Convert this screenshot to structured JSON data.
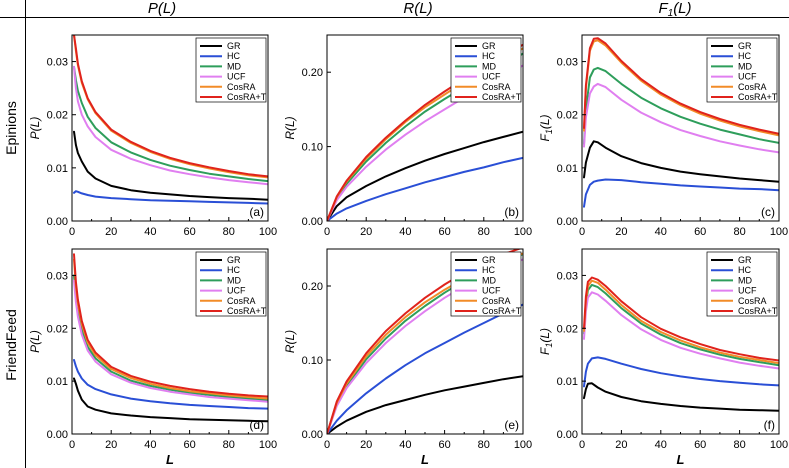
{
  "header": {
    "columns": [
      {
        "pre": "P(L)",
        "sub": "",
        "post": ""
      },
      {
        "pre": "R(L)",
        "sub": "",
        "post": ""
      },
      {
        "pre": "F",
        "sub": "1",
        "post": "(L)"
      }
    ],
    "rows": [
      "Epinions",
      "FriendFeed"
    ]
  },
  "chart_data": [
    {
      "type": "line",
      "panel_label": "(a)",
      "dataset": "Epinions",
      "metric": "precision",
      "xlabel": "",
      "ylabel": "P(L)",
      "xlim": [
        0,
        100
      ],
      "ylim": [
        0,
        0.035
      ],
      "xticks": [
        "0",
        "20",
        "40",
        "60",
        "80",
        "100"
      ],
      "yticks": [
        "0.00",
        "0.01",
        "0.02",
        "0.03"
      ],
      "x": [
        1,
        2,
        3,
        5,
        8,
        12,
        20,
        30,
        40,
        50,
        60,
        70,
        80,
        90,
        100
      ],
      "series": [
        {
          "name": "GR",
          "color": "#000000",
          "values": [
            0.0168,
            0.0143,
            0.0128,
            0.0112,
            0.0093,
            0.008,
            0.0066,
            0.0058,
            0.0053,
            0.005,
            0.0047,
            0.0045,
            0.0043,
            0.0042,
            0.004
          ]
        },
        {
          "name": "HC",
          "color": "#2a4fd6",
          "values": [
            0.0053,
            0.0056,
            0.0055,
            0.0052,
            0.0049,
            0.0046,
            0.0043,
            0.0041,
            0.0039,
            0.0038,
            0.0037,
            0.0036,
            0.0035,
            0.0034,
            0.0033
          ]
        },
        {
          "name": "MD",
          "color": "#2e9e5b",
          "values": [
            0.029,
            0.0265,
            0.0245,
            0.0222,
            0.0196,
            0.0175,
            0.0148,
            0.0129,
            0.0115,
            0.0104,
            0.0096,
            0.0089,
            0.0084,
            0.0079,
            0.0075
          ]
        },
        {
          "name": "UCF",
          "color": "#e07ff0",
          "values": [
            0.029,
            0.025,
            0.0225,
            0.02,
            0.0178,
            0.0158,
            0.0134,
            0.0117,
            0.0105,
            0.0095,
            0.0088,
            0.0082,
            0.0077,
            0.0073,
            0.0069
          ]
        },
        {
          "name": "CosRA",
          "color": "#f28c28",
          "values": [
            0.035,
            0.032,
            0.0293,
            0.026,
            0.0229,
            0.0203,
            0.017,
            0.0147,
            0.013,
            0.0117,
            0.0107,
            0.0099,
            0.0092,
            0.0086,
            0.0082
          ]
        },
        {
          "name": "CosRA+T",
          "color": "#e0231c",
          "values": [
            0.035,
            0.0325,
            0.0296,
            0.0263,
            0.0231,
            0.0205,
            0.0172,
            0.0149,
            0.0132,
            0.0119,
            0.0109,
            0.0101,
            0.0094,
            0.0088,
            0.0084
          ]
        }
      ]
    },
    {
      "type": "line",
      "panel_label": "(b)",
      "dataset": "Epinions",
      "metric": "recall",
      "xlabel": "",
      "ylabel": "R(L)",
      "xlim": [
        0,
        100
      ],
      "ylim": [
        0,
        0.25
      ],
      "xticks": [
        "0",
        "20",
        "40",
        "60",
        "80",
        "100"
      ],
      "yticks": [
        "0.00",
        "0.10",
        "0.20"
      ],
      "x": [
        0,
        5,
        10,
        20,
        30,
        40,
        50,
        60,
        70,
        80,
        90,
        100
      ],
      "series": [
        {
          "name": "GR",
          "color": "#000000",
          "values": [
            0,
            0.02,
            0.032,
            0.047,
            0.06,
            0.071,
            0.081,
            0.09,
            0.098,
            0.106,
            0.113,
            0.12
          ]
        },
        {
          "name": "HC",
          "color": "#2a4fd6",
          "values": [
            0,
            0.01,
            0.017,
            0.027,
            0.036,
            0.044,
            0.052,
            0.059,
            0.066,
            0.072,
            0.079,
            0.085
          ]
        },
        {
          "name": "MD",
          "color": "#2e9e5b",
          "values": [
            0,
            0.03,
            0.05,
            0.08,
            0.105,
            0.127,
            0.147,
            0.164,
            0.18,
            0.196,
            0.21,
            0.225
          ]
        },
        {
          "name": "UCF",
          "color": "#e07ff0",
          "values": [
            0,
            0.028,
            0.046,
            0.073,
            0.096,
            0.116,
            0.134,
            0.15,
            0.166,
            0.181,
            0.195,
            0.209
          ]
        },
        {
          "name": "CosRA",
          "color": "#f28c28",
          "values": [
            0,
            0.032,
            0.053,
            0.084,
            0.11,
            0.133,
            0.153,
            0.17,
            0.187,
            0.203,
            0.218,
            0.232
          ]
        },
        {
          "name": "CosRA+T",
          "color": "#e0231c",
          "values": [
            0,
            0.033,
            0.054,
            0.086,
            0.112,
            0.135,
            0.156,
            0.174,
            0.191,
            0.207,
            0.222,
            0.237
          ]
        }
      ]
    },
    {
      "type": "line",
      "panel_label": "(c)",
      "dataset": "Epinions",
      "metric": "F1",
      "xlabel": "",
      "ylabel": "F1(L)",
      "xlim": [
        0,
        100
      ],
      "ylim": [
        0,
        0.035
      ],
      "xticks": [
        "0",
        "20",
        "40",
        "60",
        "80",
        "100"
      ],
      "yticks": [
        "0.00",
        "0.01",
        "0.02",
        "0.03"
      ],
      "x": [
        1,
        2,
        4,
        6,
        8,
        12,
        20,
        30,
        40,
        50,
        60,
        70,
        80,
        90,
        100
      ],
      "series": [
        {
          "name": "GR",
          "color": "#000000",
          "values": [
            0.0082,
            0.011,
            0.0138,
            0.015,
            0.0148,
            0.0138,
            0.0122,
            0.0109,
            0.01,
            0.0093,
            0.0088,
            0.0084,
            0.008,
            0.0077,
            0.0074
          ]
        },
        {
          "name": "HC",
          "color": "#2a4fd6",
          "values": [
            0.0027,
            0.005,
            0.0068,
            0.0074,
            0.0076,
            0.0078,
            0.0077,
            0.0073,
            0.007,
            0.0067,
            0.0065,
            0.0063,
            0.0061,
            0.006,
            0.0058
          ]
        },
        {
          "name": "MD",
          "color": "#2e9e5b",
          "values": [
            0.0145,
            0.021,
            0.027,
            0.0285,
            0.0288,
            0.0282,
            0.0258,
            0.0232,
            0.0212,
            0.0196,
            0.0183,
            0.0172,
            0.0163,
            0.0154,
            0.0147
          ]
        },
        {
          "name": "UCF",
          "color": "#e07ff0",
          "values": [
            0.014,
            0.0195,
            0.024,
            0.0253,
            0.0258,
            0.0252,
            0.0228,
            0.0204,
            0.0186,
            0.0171,
            0.016,
            0.015,
            0.0142,
            0.0135,
            0.0129
          ]
        },
        {
          "name": "CosRA",
          "color": "#f28c28",
          "values": [
            0.017,
            0.025,
            0.032,
            0.0338,
            0.034,
            0.033,
            0.0298,
            0.0264,
            0.0238,
            0.0218,
            0.0202,
            0.0189,
            0.0178,
            0.0169,
            0.0161
          ]
        },
        {
          "name": "CosRA+T",
          "color": "#e0231c",
          "values": [
            0.0175,
            0.0255,
            0.0325,
            0.0343,
            0.0344,
            0.0334,
            0.0301,
            0.0267,
            0.0241,
            0.0221,
            0.0205,
            0.0192,
            0.0181,
            0.0172,
            0.0164
          ]
        }
      ]
    },
    {
      "type": "line",
      "panel_label": "(d)",
      "dataset": "FriendFeed",
      "metric": "precision",
      "xlabel": "L",
      "ylabel": "P(L)",
      "xlim": [
        0,
        100
      ],
      "ylim": [
        0,
        0.035
      ],
      "xticks": [
        "0",
        "20",
        "40",
        "60",
        "80",
        "100"
      ],
      "yticks": [
        "0.00",
        "0.01",
        "0.02",
        "0.03"
      ],
      "x": [
        1,
        2,
        3,
        5,
        8,
        12,
        20,
        30,
        40,
        50,
        60,
        70,
        80,
        90,
        100
      ],
      "series": [
        {
          "name": "GR",
          "color": "#000000",
          "values": [
            0.0105,
            0.0095,
            0.0082,
            0.0065,
            0.0052,
            0.0046,
            0.0039,
            0.0035,
            0.0032,
            0.003,
            0.0028,
            0.0027,
            0.0026,
            0.0025,
            0.0024
          ]
        },
        {
          "name": "HC",
          "color": "#2a4fd6",
          "values": [
            0.014,
            0.0128,
            0.0118,
            0.0105,
            0.0093,
            0.0085,
            0.0075,
            0.0067,
            0.0062,
            0.0058,
            0.0055,
            0.0053,
            0.0051,
            0.0049,
            0.0048
          ]
        },
        {
          "name": "MD",
          "color": "#2e9e5b",
          "values": [
            0.03,
            0.026,
            0.0232,
            0.0197,
            0.0165,
            0.0143,
            0.0118,
            0.0101,
            0.0091,
            0.0084,
            0.0078,
            0.0074,
            0.007,
            0.0067,
            0.0064
          ]
        },
        {
          "name": "UCF",
          "color": "#e07ff0",
          "values": [
            0.029,
            0.025,
            0.0222,
            0.0188,
            0.0158,
            0.0137,
            0.0113,
            0.0097,
            0.0087,
            0.008,
            0.0075,
            0.007,
            0.0067,
            0.0064,
            0.0061
          ]
        },
        {
          "name": "CosRA",
          "color": "#f28c28",
          "values": [
            0.033,
            0.028,
            0.0247,
            0.0208,
            0.0173,
            0.0149,
            0.0123,
            0.0106,
            0.0095,
            0.0087,
            0.0081,
            0.0077,
            0.0073,
            0.007,
            0.0067
          ]
        },
        {
          "name": "CosRA+T",
          "color": "#e0231c",
          "values": [
            0.034,
            0.0288,
            0.0254,
            0.0214,
            0.0178,
            0.0154,
            0.0127,
            0.011,
            0.0099,
            0.0091,
            0.0085,
            0.008,
            0.0076,
            0.0073,
            0.0071
          ]
        }
      ]
    },
    {
      "type": "line",
      "panel_label": "(e)",
      "dataset": "FriendFeed",
      "metric": "recall",
      "xlabel": "L",
      "ylabel": "R(L)",
      "xlim": [
        0,
        100
      ],
      "ylim": [
        0,
        0.25
      ],
      "xticks": [
        "0",
        "20",
        "40",
        "60",
        "80",
        "100"
      ],
      "yticks": [
        "0.00",
        "0.10",
        "0.20"
      ],
      "x": [
        0,
        5,
        10,
        20,
        30,
        40,
        50,
        60,
        70,
        80,
        90,
        100
      ],
      "series": [
        {
          "name": "GR",
          "color": "#000000",
          "values": [
            0,
            0.01,
            0.018,
            0.03,
            0.039,
            0.046,
            0.053,
            0.059,
            0.064,
            0.069,
            0.074,
            0.078
          ]
        },
        {
          "name": "HC",
          "color": "#2a4fd6",
          "values": [
            0,
            0.018,
            0.032,
            0.055,
            0.075,
            0.093,
            0.109,
            0.123,
            0.137,
            0.15,
            0.163,
            0.175
          ]
        },
        {
          "name": "MD",
          "color": "#2e9e5b",
          "values": [
            0,
            0.04,
            0.065,
            0.101,
            0.129,
            0.153,
            0.173,
            0.191,
            0.207,
            0.221,
            0.233,
            0.243
          ]
        },
        {
          "name": "UCF",
          "color": "#e07ff0",
          "values": [
            0,
            0.038,
            0.062,
            0.096,
            0.123,
            0.146,
            0.166,
            0.184,
            0.2,
            0.214,
            0.226,
            0.236
          ]
        },
        {
          "name": "CosRA",
          "color": "#f28c28",
          "values": [
            0,
            0.042,
            0.068,
            0.105,
            0.134,
            0.158,
            0.178,
            0.195,
            0.21,
            0.223,
            0.234,
            0.244
          ]
        },
        {
          "name": "CosRA+T",
          "color": "#e0231c",
          "values": [
            0,
            0.044,
            0.071,
            0.109,
            0.139,
            0.163,
            0.184,
            0.202,
            0.218,
            0.232,
            0.243,
            0.252
          ]
        }
      ]
    },
    {
      "type": "line",
      "panel_label": "(f)",
      "dataset": "FriendFeed",
      "metric": "F1",
      "xlabel": "L",
      "ylabel": "F1(L)",
      "xlim": [
        0,
        100
      ],
      "ylim": [
        0,
        0.035
      ],
      "xticks": [
        "0",
        "20",
        "40",
        "60",
        "80",
        "100"
      ],
      "yticks": [
        "0.00",
        "0.01",
        "0.02",
        "0.03"
      ],
      "x": [
        1,
        2,
        3,
        5,
        8,
        12,
        20,
        30,
        40,
        50,
        60,
        70,
        80,
        90,
        100
      ],
      "series": [
        {
          "name": "GR",
          "color": "#000000",
          "values": [
            0.0068,
            0.0085,
            0.0095,
            0.0096,
            0.0088,
            0.008,
            0.007,
            0.0062,
            0.0057,
            0.0053,
            0.005,
            0.0048,
            0.0046,
            0.0045,
            0.0044
          ]
        },
        {
          "name": "HC",
          "color": "#2a4fd6",
          "values": [
            0.009,
            0.0118,
            0.0133,
            0.0143,
            0.0145,
            0.0142,
            0.0133,
            0.0123,
            0.0115,
            0.0109,
            0.0104,
            0.01,
            0.0097,
            0.0094,
            0.0092
          ]
        },
        {
          "name": "MD",
          "color": "#2e9e5b",
          "values": [
            0.019,
            0.0245,
            0.0272,
            0.0282,
            0.0278,
            0.0266,
            0.0238,
            0.0209,
            0.0188,
            0.0172,
            0.016,
            0.015,
            0.0142,
            0.0136,
            0.013
          ]
        },
        {
          "name": "UCF",
          "color": "#e07ff0",
          "values": [
            0.018,
            0.0232,
            0.0258,
            0.0268,
            0.0264,
            0.0252,
            0.0225,
            0.0198,
            0.0178,
            0.0163,
            0.0152,
            0.0143,
            0.0135,
            0.0129,
            0.0124
          ]
        },
        {
          "name": "CosRA",
          "color": "#f28c28",
          "values": [
            0.0195,
            0.0252,
            0.028,
            0.029,
            0.0286,
            0.0273,
            0.0244,
            0.0214,
            0.0193,
            0.0177,
            0.0164,
            0.0154,
            0.0146,
            0.014,
            0.0134
          ]
        },
        {
          "name": "CosRA+T",
          "color": "#e0231c",
          "values": [
            0.02,
            0.026,
            0.0288,
            0.0296,
            0.0292,
            0.028,
            0.0251,
            0.0221,
            0.0199,
            0.0183,
            0.017,
            0.0159,
            0.0151,
            0.0144,
            0.0139
          ]
        }
      ]
    }
  ]
}
